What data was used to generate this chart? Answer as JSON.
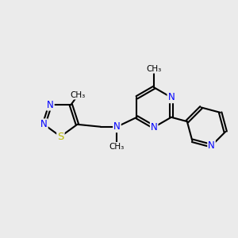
{
  "bg_color": "#ebebeb",
  "bond_color": "#000000",
  "N_color": "#0000ff",
  "S_color": "#b8b800",
  "line_width": 1.5,
  "font_size": 8.5,
  "fig_size": [
    3.0,
    3.0
  ],
  "dpi": 100,
  "xlim": [
    0,
    10
  ],
  "ylim": [
    0,
    10
  ]
}
